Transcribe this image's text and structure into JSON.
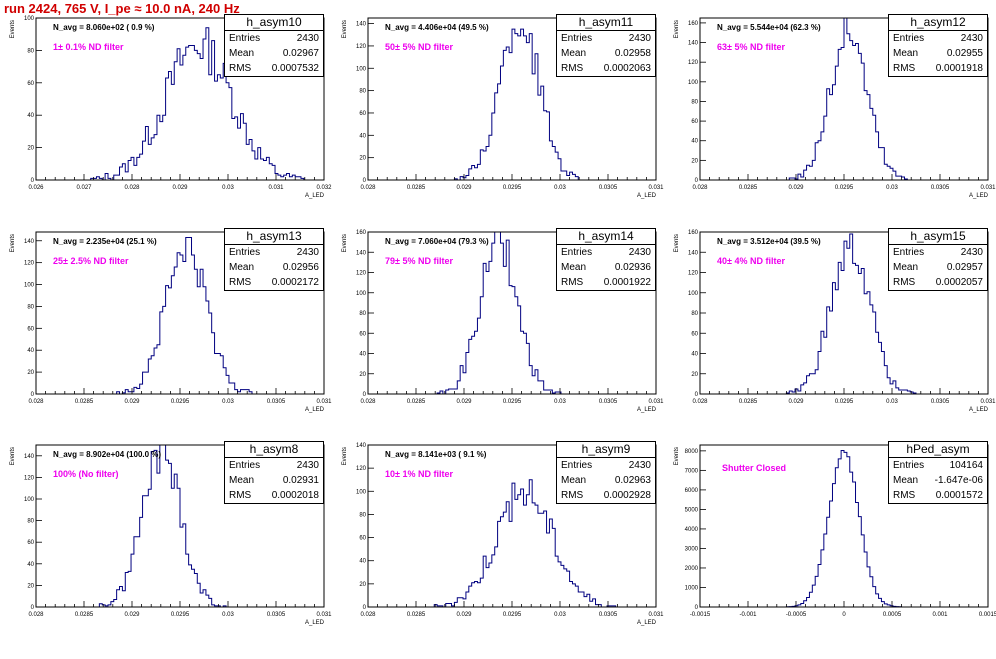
{
  "page_title": "run 2424,   765 V, I_pe ≈ 10.0 nA, 240 Hz",
  "stat_labels": {
    "entries": "Entries",
    "mean": "Mean",
    "rms": "RMS"
  },
  "colors": {
    "histogram": "#000080",
    "annotation": "#ee00ee",
    "title": "#d00000"
  },
  "chart_data": [
    {
      "type": "bar",
      "name": "h_asym10",
      "annotation": "N_avg = 8.060e+02 ( 0.9 %)",
      "filter": "1± 0.1% ND filter",
      "ylabel": "Events",
      "xlabel": "A_LED",
      "xlim": [
        0.026,
        0.0325
      ],
      "ylim": [
        0,
        100
      ],
      "xticks": [
        "0.026",
        "0.027",
        "0.028",
        "0.029",
        "0.03",
        "0.031",
        "0.032"
      ],
      "yticks": [
        "0",
        "20",
        "40",
        "60",
        "80",
        "100"
      ],
      "entries": "2430",
      "mean": "0.02967",
      "rms": "0.0007532",
      "stats": {
        "entries": 2430,
        "mean": 0.02967,
        "rms": 0.0007532
      }
    },
    {
      "type": "bar",
      "name": "h_asym11",
      "annotation": "N_avg = 4.406e+04 (49.5 %)",
      "filter": "50± 5% ND filter",
      "ylabel": "Events",
      "xlabel": "A_LED",
      "xlim": [
        0.028,
        0.031
      ],
      "ylim": [
        0,
        145
      ],
      "xticks": [
        "0.028",
        "0.0285",
        "0.029",
        "0.0295",
        "0.03",
        "0.0305",
        "0.031"
      ],
      "yticks": [
        "0",
        "20",
        "40",
        "60",
        "80",
        "100",
        "120",
        "140"
      ],
      "entries": "2430",
      "mean": "0.02958",
      "rms": "0.0002063",
      "stats": {
        "entries": 2430,
        "mean": 0.02958,
        "rms": 0.0002063
      }
    },
    {
      "type": "bar",
      "name": "h_asym12",
      "annotation": "N_avg = 5.544e+04 (62.3 %)",
      "filter": "63± 5% ND filter",
      "ylabel": "Events",
      "xlabel": "A_LED",
      "xlim": [
        0.028,
        0.031
      ],
      "ylim": [
        0,
        165
      ],
      "xticks": [
        "0.028",
        "0.0285",
        "0.029",
        "0.0295",
        "0.03",
        "0.0305",
        "0.031"
      ],
      "yticks": [
        "0",
        "20",
        "40",
        "60",
        "80",
        "100",
        "120",
        "140",
        "160"
      ],
      "entries": "2430",
      "mean": "0.02955",
      "rms": "0.0001918",
      "stats": {
        "entries": 2430,
        "mean": 0.02955,
        "rms": 0.0001918
      }
    },
    {
      "type": "bar",
      "name": "h_asym13",
      "annotation": "N_avg = 2.235e+04 (25.1 %)",
      "filter": "25± 2.5% ND filter",
      "ylabel": "Events",
      "xlabel": "A_LED",
      "xlim": [
        0.028,
        0.031
      ],
      "ylim": [
        0,
        148
      ],
      "xticks": [
        "0.028",
        "0.0285",
        "0.029",
        "0.0295",
        "0.03",
        "0.0305",
        "0.031"
      ],
      "yticks": [
        "0",
        "20",
        "40",
        "60",
        "80",
        "100",
        "120",
        "140"
      ],
      "entries": "2430",
      "mean": "0.02956",
      "rms": "0.0002172",
      "stats": {
        "entries": 2430,
        "mean": 0.02956,
        "rms": 0.0002172
      }
    },
    {
      "type": "bar",
      "name": "h_asym14",
      "annotation": "N_avg = 7.060e+04 (79.3 %)",
      "filter": "79± 5% ND filter",
      "ylabel": "Events",
      "xlabel": "A_LED",
      "xlim": [
        0.028,
        0.031
      ],
      "ylim": [
        0,
        160
      ],
      "xticks": [
        "0.028",
        "0.0285",
        "0.029",
        "0.0295",
        "0.03",
        "0.0305",
        "0.031"
      ],
      "yticks": [
        "0",
        "20",
        "40",
        "60",
        "80",
        "100",
        "120",
        "140",
        "160"
      ],
      "entries": "2430",
      "mean": "0.02936",
      "rms": "0.0001922",
      "stats": {
        "entries": 2430,
        "mean": 0.02936,
        "rms": 0.0001922
      }
    },
    {
      "type": "bar",
      "name": "h_asym15",
      "annotation": "N_avg = 3.512e+04 (39.5 %)",
      "filter": "40± 4% ND filter",
      "ylabel": "Events",
      "xlabel": "A_LED",
      "xlim": [
        0.028,
        0.031
      ],
      "ylim": [
        0,
        160
      ],
      "xticks": [
        "0.028",
        "0.0285",
        "0.029",
        "0.0295",
        "0.03",
        "0.0305",
        "0.031"
      ],
      "yticks": [
        "0",
        "20",
        "40",
        "60",
        "80",
        "100",
        "120",
        "140",
        "160"
      ],
      "entries": "2430",
      "mean": "0.02957",
      "rms": "0.0002057",
      "stats": {
        "entries": 2430,
        "mean": 0.02957,
        "rms": 0.0002057
      }
    },
    {
      "type": "bar",
      "name": "h_asym8",
      "annotation": "N_avg = 8.902e+04 (100.0 %)",
      "filter": "100% (No filter)",
      "ylabel": "Events",
      "xlabel": "A_LED",
      "xlim": [
        0.028,
        0.031
      ],
      "ylim": [
        0,
        150
      ],
      "xticks": [
        "0.028",
        "0.0285",
        "0.029",
        "0.0295",
        "0.03",
        "0.0305",
        "0.031"
      ],
      "yticks": [
        "0",
        "20",
        "40",
        "60",
        "80",
        "100",
        "120",
        "140"
      ],
      "entries": "2430",
      "mean": "0.02931",
      "rms": "0.0002018",
      "stats": {
        "entries": 2430,
        "mean": 0.02931,
        "rms": 0.0002018
      }
    },
    {
      "type": "bar",
      "name": "h_asym9",
      "annotation": "N_avg = 8.141e+03 ( 9.1 %)",
      "filter": "10± 1% ND filter",
      "ylabel": "Events",
      "xlabel": "A_LED",
      "xlim": [
        0.028,
        0.031
      ],
      "ylim": [
        0,
        140
      ],
      "xticks": [
        "0.028",
        "0.0285",
        "0.029",
        "0.0295",
        "0.03",
        "0.0305",
        "0.031"
      ],
      "yticks": [
        "0",
        "20",
        "40",
        "60",
        "80",
        "100",
        "120",
        "140"
      ],
      "entries": "2430",
      "mean": "0.02963",
      "rms": "0.0002928",
      "stats": {
        "entries": 2430,
        "mean": 0.02963,
        "rms": 0.0002928
      }
    },
    {
      "type": "bar",
      "name": "hPed_asym",
      "annotation": "",
      "filter": "Shutter Closed",
      "ylabel": "Events",
      "xlabel": "",
      "xlim": [
        -0.0015,
        0.0015
      ],
      "ylim": [
        0,
        8300
      ],
      "xticks": [
        "-0.0015",
        "-0.001",
        "-0.0005",
        "0",
        "0.0005",
        "0.001",
        "0.0015"
      ],
      "yticks": [
        "0",
        "1000",
        "2000",
        "3000",
        "4000",
        "5000",
        "6000",
        "7000",
        "8000"
      ],
      "entries": "104164",
      "mean": "-1.647e-06",
      "rms": "0.0001572",
      "stats": {
        "entries": 104164,
        "mean": -1.647e-06,
        "rms": 0.0001572
      }
    }
  ]
}
